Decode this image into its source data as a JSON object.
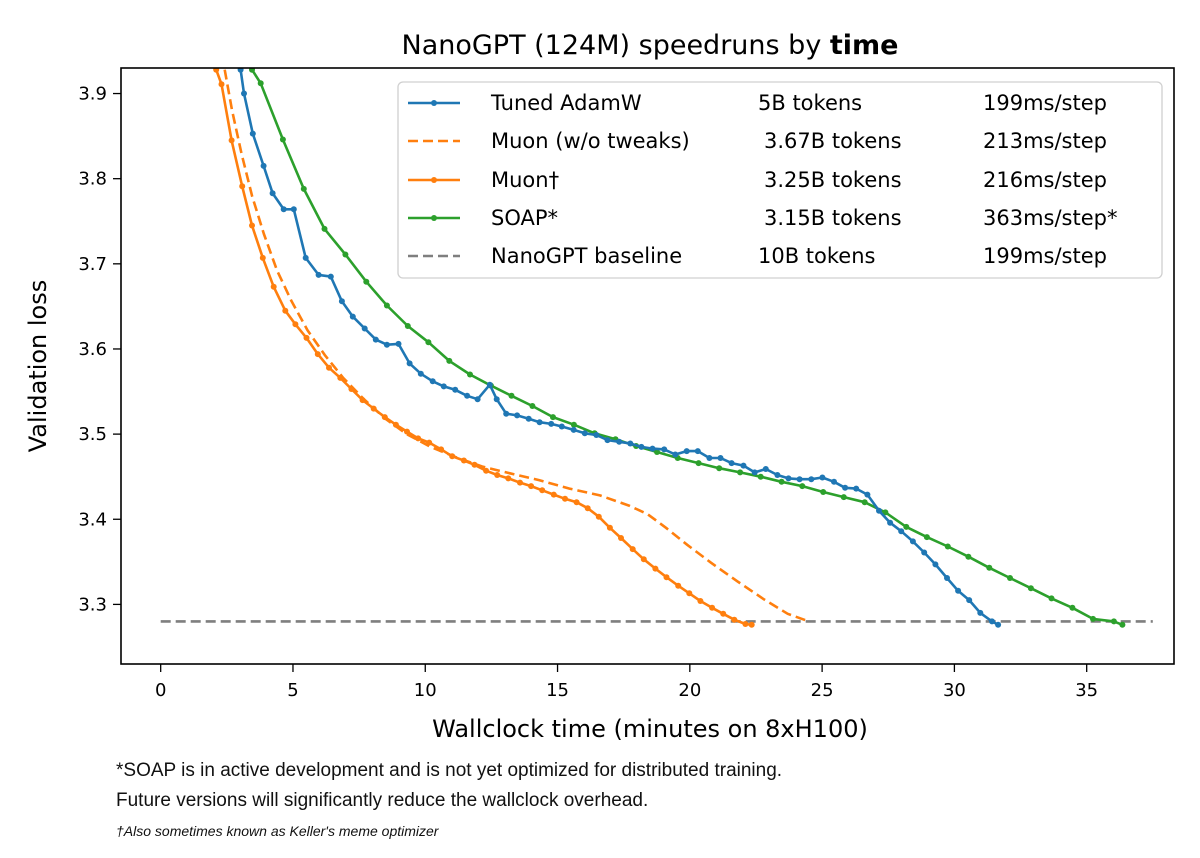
{
  "chart_data": {
    "type": "line",
    "title": "NanoGPT (124M) speedruns by",
    "title_bold": "time",
    "xlabel": "Wallclock time (minutes on 8xH100)",
    "ylabel": "Validation loss",
    "xlim": [
      -1.5,
      38.3
    ],
    "ylim": [
      3.23,
      3.93
    ],
    "xticks": [
      0,
      5,
      10,
      15,
      20,
      25,
      30,
      35
    ],
    "xtick_labels": [
      "0",
      "5",
      "10",
      "15",
      "20",
      "25",
      "30",
      "35"
    ],
    "yticks": [
      3.3,
      3.4,
      3.5,
      3.6,
      3.7,
      3.8,
      3.9
    ],
    "ytick_labels": [
      "3.3",
      "3.4",
      "3.5",
      "3.6",
      "3.7",
      "3.8",
      "3.9"
    ],
    "grid": false,
    "legend_position": "top-right",
    "series": [
      {
        "name": "Tuned AdamW",
        "tokens": "5B tokens",
        "speed": "199ms/step",
        "color": "#1f77b4",
        "style": "solid",
        "markers": true,
        "x": [
          3.02,
          3.15,
          3.48,
          3.89,
          4.23,
          4.65,
          5.03,
          5.48,
          5.97,
          6.43,
          6.85,
          7.26,
          7.71,
          8.13,
          8.55,
          8.99,
          9.41,
          9.83,
          10.28,
          10.7,
          11.13,
          11.58,
          11.98,
          12.44,
          12.7,
          13.06,
          13.47,
          13.91,
          14.32,
          14.76,
          15.16,
          15.61,
          16.03,
          16.47,
          16.89,
          17.33,
          17.75,
          18.17,
          18.59,
          19.03,
          19.45,
          19.88,
          20.3,
          20.74,
          21.16,
          21.58,
          22.03,
          22.45,
          22.87,
          23.31,
          23.73,
          24.15,
          24.59,
          25.01,
          25.45,
          25.87,
          26.29,
          26.71,
          27.15,
          27.57,
          27.99,
          28.43,
          28.86,
          29.28,
          29.72,
          30.14,
          30.56,
          30.98,
          31.42,
          31.65
        ],
        "y": [
          3.928,
          3.9,
          3.853,
          3.815,
          3.783,
          3.764,
          3.764,
          3.707,
          3.687,
          3.685,
          3.656,
          3.638,
          3.624,
          3.611,
          3.605,
          3.606,
          3.583,
          3.571,
          3.562,
          3.556,
          3.552,
          3.545,
          3.541,
          3.558,
          3.541,
          3.524,
          3.522,
          3.518,
          3.514,
          3.512,
          3.509,
          3.505,
          3.501,
          3.499,
          3.493,
          3.491,
          3.489,
          3.485,
          3.483,
          3.482,
          3.476,
          3.48,
          3.48,
          3.472,
          3.472,
          3.466,
          3.463,
          3.455,
          3.459,
          3.452,
          3.448,
          3.447,
          3.447,
          3.449,
          3.444,
          3.437,
          3.436,
          3.429,
          3.41,
          3.396,
          3.386,
          3.374,
          3.361,
          3.347,
          3.331,
          3.316,
          3.305,
          3.29,
          3.28,
          3.276
        ]
      },
      {
        "name": "Muon (w/o tweaks)",
        "tokens": "3.67B tokens",
        "speed": "213ms/step",
        "color": "#ff7f0e",
        "style": "dashed",
        "markers": false,
        "x": [
          2.42,
          2.7,
          3.05,
          3.45,
          3.9,
          4.4,
          4.95,
          5.55,
          6.2,
          6.9,
          7.65,
          8.45,
          9.3,
          10.2,
          11.15,
          12.15,
          13.2,
          14.3,
          15.45,
          16.6,
          17.7,
          18.4,
          19.1,
          19.9,
          20.8,
          21.8,
          22.8,
          23.7,
          24.5
        ],
        "y": [
          3.928,
          3.88,
          3.83,
          3.78,
          3.735,
          3.692,
          3.656,
          3.622,
          3.593,
          3.566,
          3.542,
          3.519,
          3.5,
          3.485,
          3.473,
          3.462,
          3.454,
          3.446,
          3.436,
          3.428,
          3.416,
          3.406,
          3.39,
          3.37,
          3.349,
          3.327,
          3.306,
          3.289,
          3.28
        ]
      },
      {
        "name": "Muon†",
        "tokens": "3.25B tokens",
        "speed": "216ms/step",
        "color": "#ff7f0e",
        "style": "solid",
        "markers": true,
        "x": [
          2.1,
          2.3,
          2.68,
          3.08,
          3.45,
          3.86,
          4.27,
          4.71,
          5.09,
          5.51,
          5.94,
          6.36,
          6.79,
          7.21,
          7.63,
          8.05,
          8.47,
          8.89,
          9.31,
          9.73,
          10.15,
          10.6,
          11.02,
          11.46,
          11.86,
          12.3,
          12.72,
          13.14,
          13.58,
          14.0,
          14.42,
          14.86,
          15.28,
          15.72,
          16.14,
          16.56,
          16.98,
          17.4,
          17.84,
          18.26,
          18.7,
          19.12,
          19.56,
          19.98,
          20.4,
          20.84,
          21.26,
          21.68,
          22.1,
          22.34
        ],
        "y": [
          3.928,
          3.911,
          3.845,
          3.791,
          3.745,
          3.707,
          3.673,
          3.645,
          3.629,
          3.613,
          3.594,
          3.578,
          3.566,
          3.553,
          3.54,
          3.53,
          3.52,
          3.511,
          3.503,
          3.495,
          3.49,
          3.482,
          3.474,
          3.469,
          3.464,
          3.457,
          3.452,
          3.448,
          3.443,
          3.439,
          3.434,
          3.429,
          3.424,
          3.42,
          3.413,
          3.403,
          3.39,
          3.378,
          3.365,
          3.353,
          3.342,
          3.332,
          3.322,
          3.313,
          3.304,
          3.296,
          3.289,
          3.282,
          3.277,
          3.276
        ]
      },
      {
        "name": "SOAP*",
        "tokens": "3.15B tokens",
        "speed": "363ms/step*",
        "color": "#2ca02c",
        "style": "solid",
        "markers": true,
        "x": [
          3.45,
          3.78,
          4.62,
          5.41,
          6.19,
          6.98,
          7.77,
          8.55,
          9.34,
          10.12,
          10.91,
          11.69,
          12.48,
          13.26,
          14.05,
          14.83,
          15.62,
          16.4,
          17.19,
          17.97,
          18.76,
          19.54,
          20.33,
          21.11,
          21.9,
          22.68,
          23.47,
          24.25,
          25.04,
          25.82,
          26.61,
          27.39,
          28.18,
          28.96,
          29.75,
          30.53,
          31.32,
          32.1,
          32.89,
          33.67,
          34.46,
          35.24,
          36.03,
          36.35
        ],
        "y": [
          3.928,
          3.912,
          3.846,
          3.788,
          3.741,
          3.711,
          3.679,
          3.651,
          3.627,
          3.608,
          3.586,
          3.57,
          3.557,
          3.545,
          3.533,
          3.52,
          3.511,
          3.501,
          3.494,
          3.486,
          3.479,
          3.472,
          3.466,
          3.46,
          3.455,
          3.45,
          3.444,
          3.439,
          3.432,
          3.426,
          3.42,
          3.408,
          3.391,
          3.379,
          3.368,
          3.356,
          3.343,
          3.331,
          3.319,
          3.307,
          3.296,
          3.283,
          3.28,
          3.276
        ]
      },
      {
        "name": "NanoGPT baseline",
        "tokens": "10B tokens",
        "speed": "199ms/step",
        "color": "#7f7f7f",
        "style": "dashed",
        "markers": false,
        "x": [
          0,
          37.5
        ],
        "y": [
          3.28,
          3.28
        ]
      }
    ]
  },
  "footnotes": {
    "soap_note_line1": "*SOAP is in active development and is not yet optimized for distributed training.",
    "soap_note_line2": "Future versions will significantly reduce the wallclock overhead.",
    "muon_note": "†Also sometimes known as Keller's meme optimizer"
  }
}
